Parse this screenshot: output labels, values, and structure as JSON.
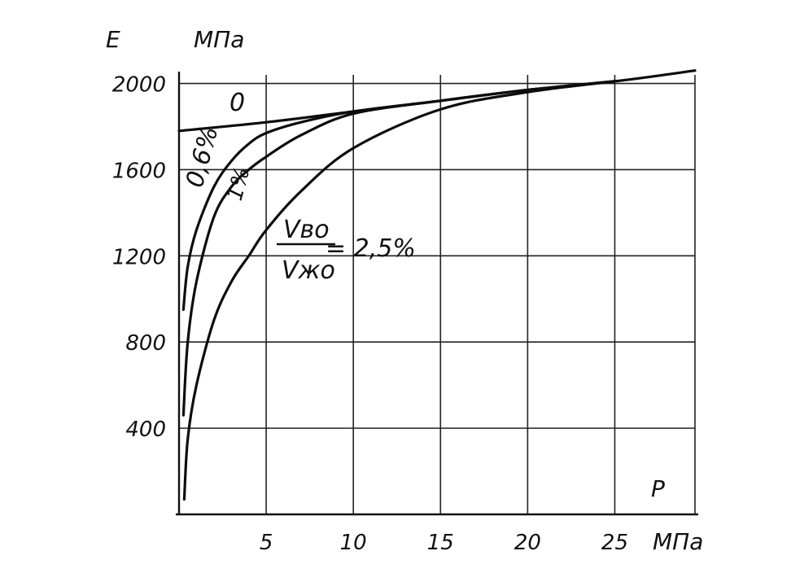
{
  "chart_data": {
    "type": "line",
    "title": "",
    "ylabel": "E",
    "yunit": "МПа",
    "xlabel": "P",
    "xunit": "МПа",
    "xlim": [
      0,
      29.6
    ],
    "ylim": [
      0,
      2040
    ],
    "grid": true,
    "xticks": [
      5,
      10,
      15,
      20,
      25
    ],
    "xtick_labels": [
      "5",
      "10",
      "15",
      "20",
      "25"
    ],
    "yticks": [
      400,
      800,
      1200,
      1600,
      2000
    ],
    "ytick_labels": [
      "400",
      "800",
      "1200",
      "1600",
      "2000"
    ],
    "annotations": {
      "zero": "0",
      "frac06": "0,6%",
      "one": "1%",
      "ratio_num": "Vво",
      "ratio_den": "Vжо",
      "ratio_val": "= 2,5%"
    },
    "series": [
      {
        "x": [
          0,
          5,
          10,
          15,
          20,
          25,
          29.6
        ],
        "y": [
          1780,
          1820,
          1870,
          1920,
          1970,
          2010,
          2060
        ]
      },
      {
        "x": [
          0.25,
          0.5,
          1,
          2,
          3,
          4,
          5,
          7,
          10,
          15,
          20,
          25
        ],
        "y": [
          950,
          1150,
          1320,
          1520,
          1640,
          1720,
          1770,
          1820,
          1870,
          1920,
          1970,
          2010
        ]
      },
      {
        "x": [
          0.25,
          0.5,
          1,
          2,
          3,
          4,
          5,
          7,
          10,
          15,
          20,
          25
        ],
        "y": [
          460,
          800,
          1080,
          1380,
          1520,
          1600,
          1660,
          1760,
          1860,
          1920,
          1970,
          2010
        ]
      },
      {
        "x": [
          0.3,
          0.5,
          1,
          2,
          3,
          4,
          5,
          7,
          10,
          15,
          20,
          25
        ],
        "y": [
          70,
          350,
          600,
          900,
          1080,
          1200,
          1320,
          1500,
          1700,
          1880,
          1960,
          2010
        ]
      }
    ]
  }
}
